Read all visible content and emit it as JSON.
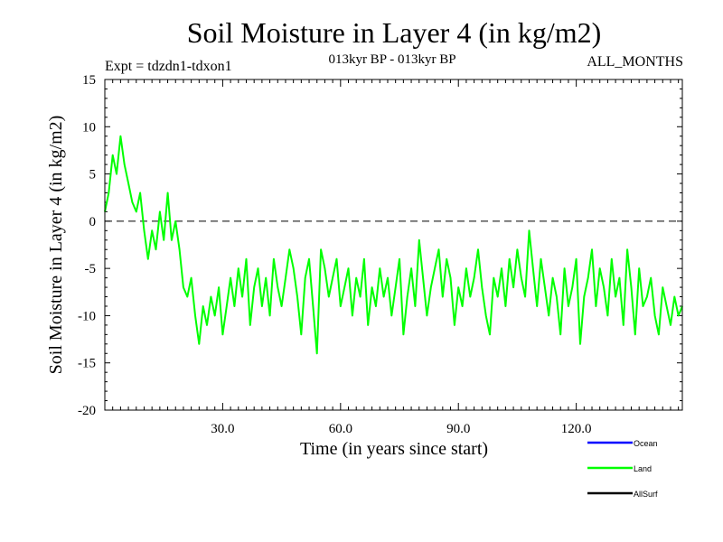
{
  "chart_data": {
    "type": "line",
    "title": "Soil Moisture in Layer 4 (in kg/m2)",
    "subtitle": "013kyr BP - 013kyr BP",
    "left_note": "Expt = tdzdn1-tdxon1",
    "right_note": "ALL_MONTHS",
    "xlabel": "Time (in years since start)",
    "ylabel": "Soil Moisture in Layer 4 (in kg/m2)",
    "xlim": [
      0,
      147
    ],
    "ylim": [
      -20,
      15
    ],
    "x_ticks": [
      30,
      60,
      90,
      120
    ],
    "x_tick_labels": [
      "30.0",
      "60.0",
      "90.0",
      "120.0"
    ],
    "y_ticks": [
      15,
      10,
      5,
      0,
      -5,
      -10,
      -15,
      -20
    ],
    "y_tick_labels": [
      "15",
      "10",
      "5",
      "0",
      "-5",
      "-10",
      "-15",
      "-20"
    ],
    "reference_line": {
      "y": 0,
      "style": "dashed"
    },
    "legend_position": "bottom-right",
    "series": [
      {
        "name": "Land",
        "color": "#00ff00",
        "x": [
          0,
          1,
          2,
          3,
          4,
          5,
          6,
          7,
          8,
          9,
          10,
          11,
          12,
          13,
          14,
          15,
          16,
          17,
          18,
          19,
          20,
          21,
          22,
          23,
          24,
          25,
          26,
          27,
          28,
          29,
          30,
          31,
          32,
          33,
          34,
          35,
          36,
          37,
          38,
          39,
          40,
          41,
          42,
          43,
          44,
          45,
          46,
          47,
          48,
          49,
          50,
          51,
          52,
          53,
          54,
          55,
          56,
          57,
          58,
          59,
          60,
          61,
          62,
          63,
          64,
          65,
          66,
          67,
          68,
          69,
          70,
          71,
          72,
          73,
          74,
          75,
          76,
          77,
          78,
          79,
          80,
          81,
          82,
          83,
          84,
          85,
          86,
          87,
          88,
          89,
          90,
          91,
          92,
          93,
          94,
          95,
          96,
          97,
          98,
          99,
          100,
          101,
          102,
          103,
          104,
          105,
          106,
          107,
          108,
          109,
          110,
          111,
          112,
          113,
          114,
          115,
          116,
          117,
          118,
          119,
          120,
          121,
          122,
          123,
          124,
          125,
          126,
          127,
          128,
          129,
          130,
          131,
          132,
          133,
          134,
          135,
          136,
          137,
          138,
          139,
          140,
          141,
          142,
          143,
          144,
          145,
          146,
          147
        ],
        "values": [
          1,
          3,
          7,
          5,
          9,
          6,
          4,
          2,
          1,
          3,
          -1,
          -4,
          -1,
          -3,
          1,
          -2,
          3,
          -2,
          0,
          -3,
          -7,
          -8,
          -6,
          -10,
          -13,
          -9,
          -11,
          -8,
          -10,
          -7,
          -12,
          -9,
          -6,
          -9,
          -5,
          -8,
          -4,
          -11,
          -7,
          -5,
          -9,
          -6,
          -10,
          -4,
          -7,
          -9,
          -6,
          -3,
          -5,
          -8,
          -12,
          -6,
          -4,
          -9,
          -14,
          -3,
          -5,
          -8,
          -6,
          -4,
          -9,
          -7,
          -5,
          -10,
          -6,
          -8,
          -4,
          -11,
          -7,
          -9,
          -5,
          -8,
          -6,
          -10,
          -7,
          -4,
          -12,
          -8,
          -5,
          -9,
          -2,
          -6,
          -10,
          -7,
          -5,
          -3,
          -8,
          -4,
          -6,
          -11,
          -7,
          -9,
          -5,
          -8,
          -6,
          -3,
          -7,
          -10,
          -12,
          -6,
          -8,
          -5,
          -9,
          -4,
          -7,
          -3,
          -6,
          -8,
          -1,
          -5,
          -9,
          -4,
          -7,
          -10,
          -6,
          -8,
          -12,
          -5,
          -9,
          -7,
          -4,
          -13,
          -8,
          -6,
          -3,
          -9,
          -5,
          -7,
          -10,
          -4,
          -8,
          -6,
          -11,
          -3,
          -7,
          -12,
          -5,
          -9,
          -8,
          -6,
          -10,
          -12,
          -7,
          -9,
          -11,
          -8,
          -10,
          -9
        ]
      }
    ]
  },
  "legend": [
    {
      "name": "Ocean",
      "color": "#0000ff"
    },
    {
      "name": "Land",
      "color": "#00ff00"
    },
    {
      "name": "AllSurf",
      "color": "#000000"
    }
  ]
}
